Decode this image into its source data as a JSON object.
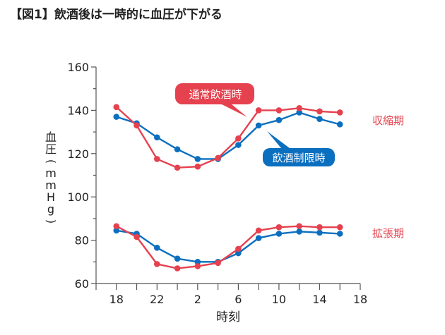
{
  "chart_data": {
    "type": "line",
    "title": "【図1】飲酒後は一時的に血圧が下がる",
    "xlabel": "時刻",
    "ylabel": "血圧(mmHg)",
    "ylim": [
      60,
      160
    ],
    "yticks": [
      60,
      80,
      100,
      120,
      140,
      160
    ],
    "xticks": [
      "18",
      "22",
      "2",
      "6",
      "10",
      "14",
      "18"
    ],
    "x": [
      18,
      20,
      22,
      24,
      26,
      28,
      30,
      32,
      34,
      36,
      38,
      40
    ],
    "xlim": [
      16,
      42
    ],
    "colors": {
      "normal": "#e5414e",
      "restricted": "#0b6fc0"
    },
    "series": [
      {
        "name": "通常飲酒時",
        "group": "収縮期",
        "color": "#e5414e",
        "values": [
          141.5,
          133,
          117.5,
          113.5,
          114,
          118,
          127,
          140,
          140,
          141,
          139.5,
          139
        ]
      },
      {
        "name": "飲酒制限時",
        "group": "収縮期",
        "color": "#0b6fc0",
        "values": [
          137,
          134,
          127.5,
          122,
          117.5,
          117.5,
          124,
          133,
          135.5,
          139,
          136,
          133.5
        ]
      },
      {
        "name": "通常飲酒時",
        "group": "拡張期",
        "color": "#e5414e",
        "values": [
          86.5,
          81.5,
          69,
          67,
          68,
          69.5,
          76,
          84.5,
          86,
          86.5,
          86,
          86
        ]
      },
      {
        "name": "飲酒制限時",
        "group": "拡張期",
        "color": "#0b6fc0",
        "values": [
          84.5,
          83,
          76.5,
          71.5,
          70,
          70,
          74,
          81,
          83,
          84,
          83.5,
          83
        ]
      }
    ],
    "annotations": {
      "systolic": "収縮期",
      "diastolic": "拡張期",
      "normal_callout": "通常飲酒時",
      "restricted_callout": "飲酒制限時"
    },
    "grid": false
  }
}
